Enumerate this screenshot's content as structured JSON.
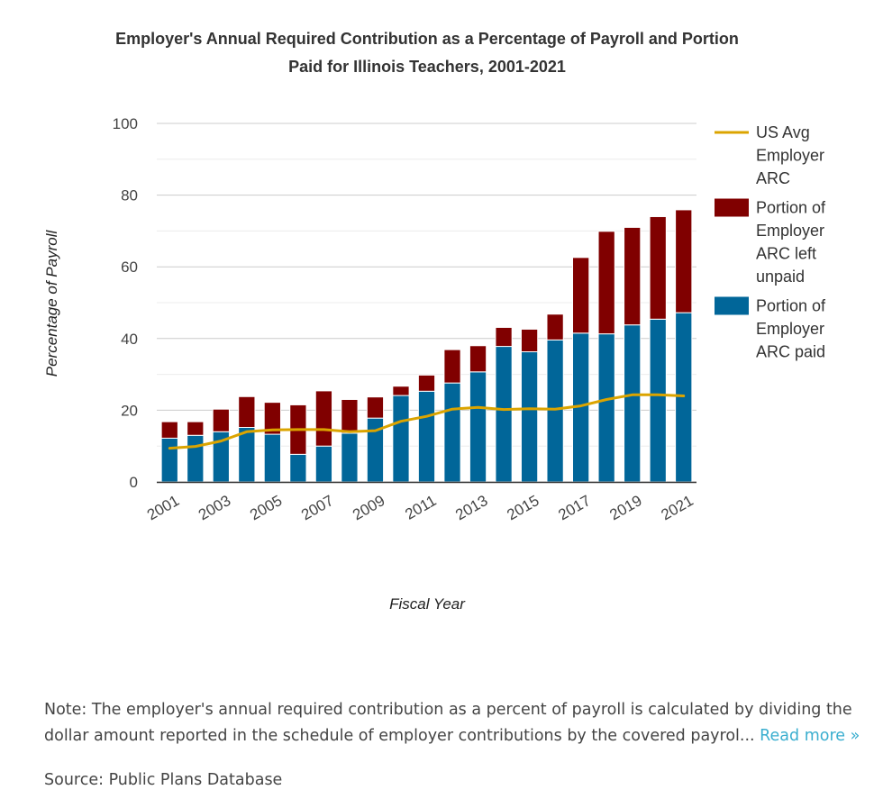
{
  "chart_data": {
    "type": "bar",
    "stacked": true,
    "title_lines": [
      "Employer's Annual Required Contribution as a Percentage of Payroll and Portion",
      "Paid for Illinois Teachers, 2001-2021"
    ],
    "xlabel": "Fiscal Year",
    "ylabel": "Percentage of Payroll",
    "ylim": [
      0,
      100
    ],
    "yticks": [
      0,
      20,
      40,
      60,
      80,
      100
    ],
    "grid": true,
    "legend_position": "right",
    "categories": [
      "2001",
      "2002",
      "2003",
      "2004",
      "2005",
      "2006",
      "2007",
      "2008",
      "2009",
      "2010",
      "2011",
      "2012",
      "2013",
      "2014",
      "2015",
      "2016",
      "2017",
      "2018",
      "2019",
      "2020",
      "2021"
    ],
    "xtick_labels": [
      "2001",
      "2003",
      "2005",
      "2007",
      "2009",
      "2011",
      "2013",
      "2015",
      "2017",
      "2019",
      "2021"
    ],
    "series": [
      {
        "name": "Portion of Employer ARC paid",
        "kind": "bar",
        "color": "#016699",
        "values": [
          12.2,
          13.0,
          14.0,
          15.2,
          13.3,
          7.7,
          10.0,
          13.6,
          17.8,
          24.1,
          25.3,
          27.6,
          30.7,
          37.8,
          36.3,
          39.6,
          41.5,
          41.3,
          43.8,
          45.4,
          47.2
        ]
      },
      {
        "name": "Portion of Employer ARC left unpaid",
        "kind": "bar",
        "color": "#800000",
        "values": [
          4.6,
          3.8,
          6.3,
          8.6,
          8.9,
          13.8,
          15.4,
          9.4,
          5.9,
          2.6,
          4.5,
          9.3,
          7.3,
          5.3,
          6.3,
          7.2,
          21.1,
          28.6,
          27.2,
          28.6,
          28.7
        ]
      },
      {
        "name": "US Avg Employer ARC",
        "kind": "line",
        "color": "#dba400",
        "values": [
          9.4,
          9.9,
          11.4,
          14.0,
          14.5,
          14.6,
          14.6,
          14.0,
          14.3,
          16.9,
          18.3,
          20.3,
          20.8,
          20.2,
          20.4,
          20.3,
          21.2,
          23.0,
          24.3,
          24.3,
          24.0
        ]
      }
    ],
    "legend": [
      {
        "lines": [
          "US Avg",
          "Employer",
          "ARC"
        ],
        "color": "#dba400",
        "symbol": "line"
      },
      {
        "lines": [
          "Portion of",
          "Employer",
          "ARC left",
          "unpaid"
        ],
        "color": "#800000",
        "symbol": "box"
      },
      {
        "lines": [
          "Portion of",
          "Employer",
          "ARC paid"
        ],
        "color": "#016699",
        "symbol": "box"
      }
    ]
  },
  "note": {
    "text": "Note: The employer's annual required contribution as a percent of payroll is calculated by dividing the dollar amount reported in the schedule of employer contributions by the covered payrol...",
    "read_more": "Read more »"
  },
  "source": "Source: Public Plans Database"
}
